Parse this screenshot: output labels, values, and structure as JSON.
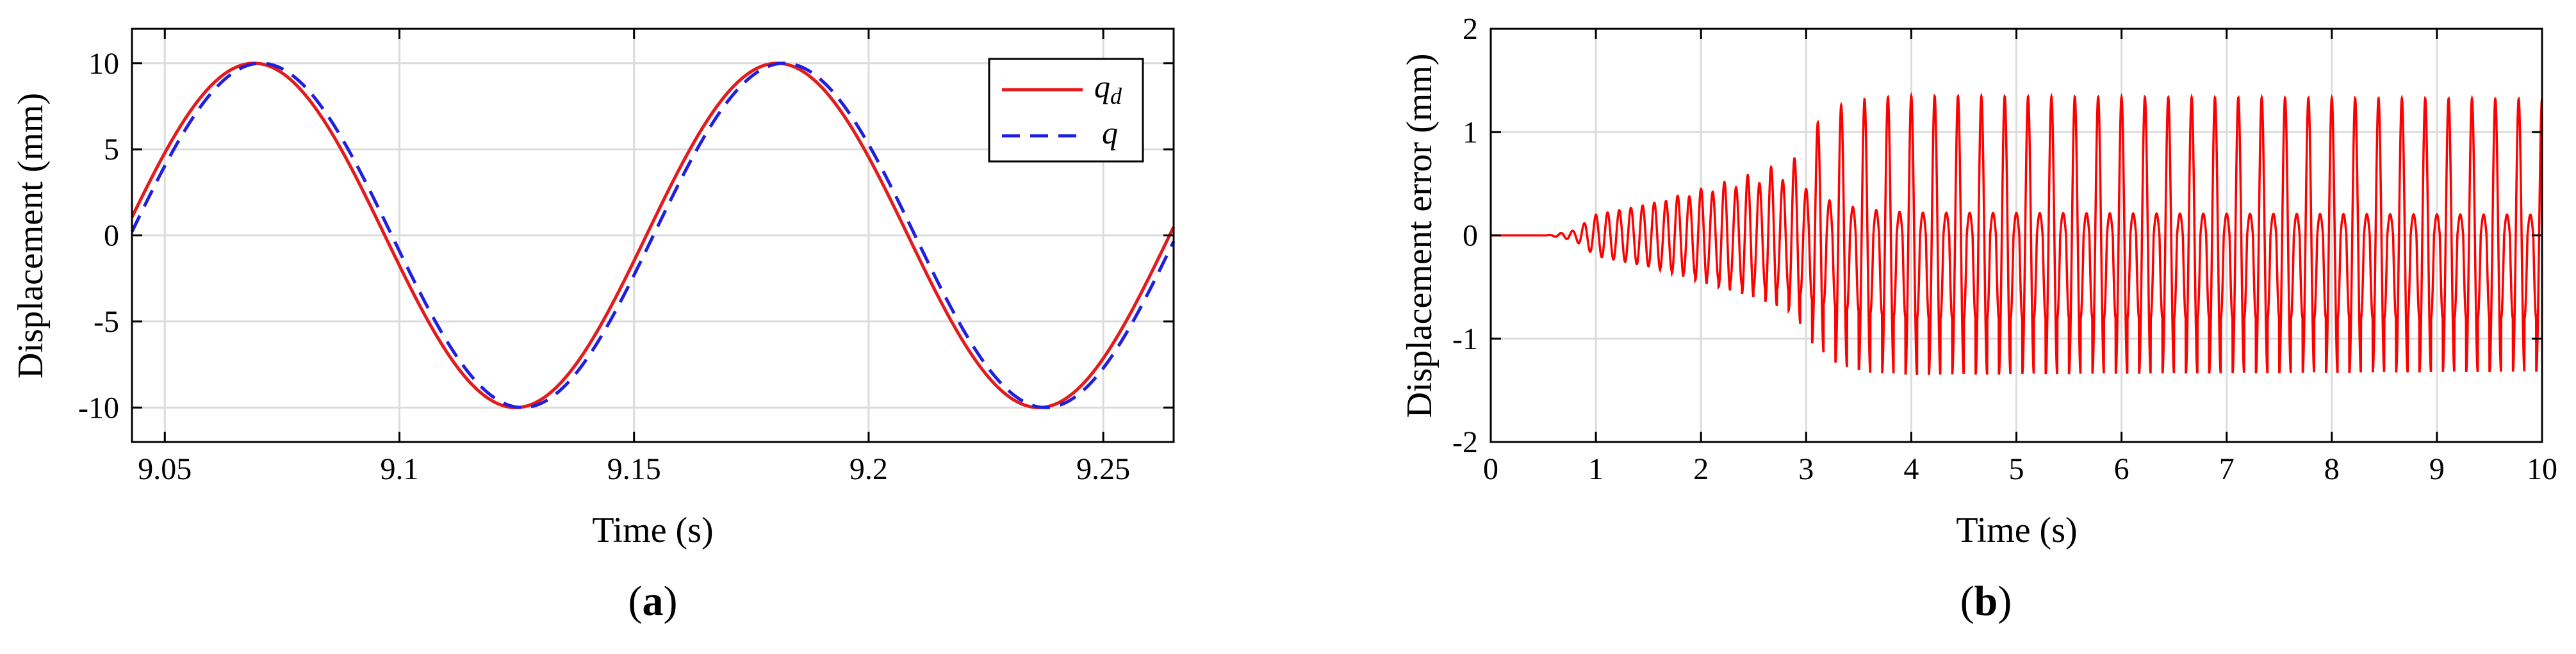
{
  "chart_data": [
    {
      "type": "line",
      "panel_label": "(a)",
      "xlabel": "Time (s)",
      "ylabel": "Displacement (mm)",
      "xlim": [
        9.043,
        9.265
      ],
      "ylim": [
        -12,
        12
      ],
      "xticks": [
        9.05,
        9.1,
        9.15,
        9.2,
        9.25
      ],
      "xtick_labels": [
        "9.05",
        "9.1",
        "9.15",
        "9.2",
        "9.25"
      ],
      "yticks": [
        10,
        5,
        0,
        -5,
        -10
      ],
      "ytick_labels": [
        "10",
        "5",
        "0",
        "-5",
        "-10"
      ],
      "grid": true,
      "legend_position": "top-right",
      "series": [
        {
          "name": "q_d",
          "legend_label": "qd",
          "color": "#e41a1c",
          "style": "solid",
          "amplitude": 10,
          "period": 0.1115,
          "peak_time": 9.069,
          "x": [
            9.043,
            9.069,
            9.0969,
            9.1248,
            9.1526,
            9.1805,
            9.2084,
            9.2363,
            9.265
          ],
          "y": [
            0.5,
            10,
            0,
            -10,
            0,
            10,
            0,
            -10,
            0.5
          ]
        },
        {
          "name": "q",
          "legend_label": "q",
          "color": "#1f1fe0",
          "style": "dashed",
          "amplitude": 10,
          "period": 0.1115,
          "peak_time": 9.0705,
          "x": [
            9.043,
            9.0705,
            9.0984,
            9.1263,
            9.1541,
            9.182,
            9.2099,
            9.2378,
            9.265
          ],
          "y": [
            -1,
            10,
            0,
            -10,
            0,
            10,
            0,
            -10,
            -1
          ]
        }
      ]
    },
    {
      "type": "line",
      "panel_label": "(b)",
      "xlabel": "Time (s)",
      "ylabel": "Displacement error (mm)",
      "xlim": [
        0,
        10
      ],
      "ylim": [
        -2,
        2
      ],
      "xticks": [
        0,
        1,
        2,
        3,
        4,
        5,
        6,
        7,
        8,
        9,
        10
      ],
      "xtick_labels": [
        "0",
        "1",
        "2",
        "3",
        "4",
        "5",
        "6",
        "7",
        "8",
        "9",
        "10"
      ],
      "yticks": [
        2,
        1,
        0,
        -1,
        -2
      ],
      "ytick_labels": [
        "2",
        "1",
        "0",
        "-1",
        "-2"
      ],
      "grid": true,
      "series": [
        {
          "name": "error",
          "color": "#ff0000",
          "style": "solid",
          "oscillation_frequency_hz": 9,
          "envelope": {
            "t": [
              0,
              0.5,
              0.6,
              0.8,
              1.0,
              1.5,
              2.0,
              2.5,
              2.9,
              3.0,
              3.3,
              3.6,
              4.0,
              10.0
            ],
            "upper": [
              0,
              0,
              0.01,
              0.05,
              0.2,
              0.3,
              0.45,
              0.6,
              0.75,
              1.0,
              1.25,
              1.33,
              1.35,
              1.32
            ],
            "lower": [
              0,
              0,
              -0.01,
              -0.05,
              -0.2,
              -0.3,
              -0.45,
              -0.6,
              -0.75,
              -1.0,
              -1.25,
              -1.33,
              -1.35,
              -1.32
            ]
          },
          "inner_band_upper": [
            0,
            0,
            0.01,
            0.05,
            0.2,
            0.3,
            0.4,
            0.5,
            0.55,
            0.45,
            0.3,
            0.25,
            0.22,
            0.2
          ],
          "inner_band_lower": [
            0,
            0,
            -0.01,
            -0.05,
            -0.2,
            -0.3,
            -0.4,
            -0.5,
            -0.55,
            -0.6,
            -0.7,
            -0.75,
            -0.8,
            -0.8
          ]
        }
      ]
    }
  ]
}
